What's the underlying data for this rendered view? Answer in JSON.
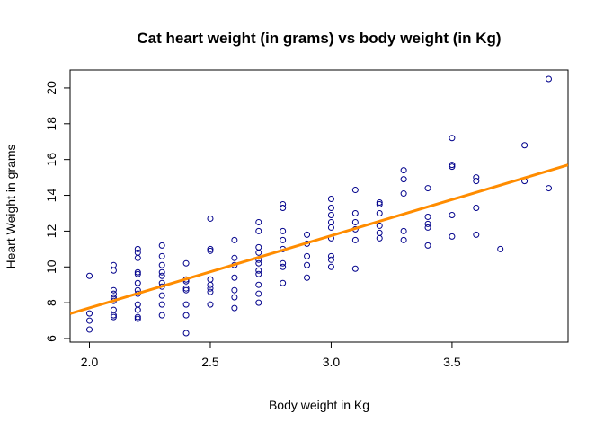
{
  "chart_data": {
    "type": "scatter",
    "title": "Cat heart weight (in grams) vs body weight (in Kg)",
    "xlabel": "Body weight in Kg",
    "ylabel": "Heart Weight in grams",
    "xlim": [
      1.92,
      3.98
    ],
    "ylim": [
      5.8,
      21.0
    ],
    "x_ticks": [
      2.0,
      2.5,
      3.0,
      3.5
    ],
    "x_tick_labels": [
      "2.0",
      "2.5",
      "3.0",
      "3.5"
    ],
    "y_ticks": [
      6,
      8,
      10,
      12,
      14,
      16,
      18,
      20
    ],
    "y_tick_labels": [
      "6",
      "8",
      "10",
      "12",
      "14",
      "16",
      "18",
      "20"
    ],
    "grid": false,
    "marker_color": "#00008b",
    "fit_line_color": "#ff8c00",
    "points": [
      [
        2.0,
        6.5
      ],
      [
        2.0,
        7.0
      ],
      [
        2.0,
        7.4
      ],
      [
        2.0,
        9.5
      ],
      [
        2.1,
        7.2
      ],
      [
        2.1,
        7.3
      ],
      [
        2.1,
        7.6
      ],
      [
        2.1,
        8.1
      ],
      [
        2.1,
        8.2
      ],
      [
        2.1,
        8.3
      ],
      [
        2.1,
        8.5
      ],
      [
        2.1,
        8.7
      ],
      [
        2.1,
        9.8
      ],
      [
        2.1,
        10.1
      ],
      [
        2.2,
        7.1
      ],
      [
        2.2,
        7.2
      ],
      [
        2.2,
        7.6
      ],
      [
        2.2,
        7.9
      ],
      [
        2.2,
        8.5
      ],
      [
        2.2,
        8.7
      ],
      [
        2.2,
        9.1
      ],
      [
        2.2,
        9.6
      ],
      [
        2.2,
        9.7
      ],
      [
        2.2,
        10.5
      ],
      [
        2.2,
        10.8
      ],
      [
        2.2,
        11.0
      ],
      [
        2.3,
        7.3
      ],
      [
        2.3,
        7.9
      ],
      [
        2.3,
        8.4
      ],
      [
        2.3,
        8.9
      ],
      [
        2.3,
        9.1
      ],
      [
        2.3,
        9.5
      ],
      [
        2.3,
        9.7
      ],
      [
        2.3,
        10.1
      ],
      [
        2.3,
        10.6
      ],
      [
        2.3,
        11.2
      ],
      [
        2.4,
        6.3
      ],
      [
        2.4,
        7.3
      ],
      [
        2.4,
        7.9
      ],
      [
        2.4,
        8.7
      ],
      [
        2.4,
        8.8
      ],
      [
        2.4,
        9.2
      ],
      [
        2.4,
        9.3
      ],
      [
        2.4,
        10.2
      ],
      [
        2.5,
        7.9
      ],
      [
        2.5,
        8.6
      ],
      [
        2.5,
        8.8
      ],
      [
        2.5,
        9.0
      ],
      [
        2.5,
        9.3
      ],
      [
        2.5,
        10.9
      ],
      [
        2.5,
        11.0
      ],
      [
        2.5,
        12.7
      ],
      [
        2.6,
        7.7
      ],
      [
        2.6,
        8.3
      ],
      [
        2.6,
        8.7
      ],
      [
        2.6,
        9.4
      ],
      [
        2.6,
        10.1
      ],
      [
        2.6,
        10.5
      ],
      [
        2.6,
        11.5
      ],
      [
        2.7,
        8.0
      ],
      [
        2.7,
        8.5
      ],
      [
        2.7,
        9.0
      ],
      [
        2.7,
        9.6
      ],
      [
        2.7,
        9.8
      ],
      [
        2.7,
        10.2
      ],
      [
        2.7,
        10.4
      ],
      [
        2.7,
        10.8
      ],
      [
        2.7,
        11.1
      ],
      [
        2.7,
        12.0
      ],
      [
        2.7,
        12.5
      ],
      [
        2.8,
        9.1
      ],
      [
        2.8,
        10.0
      ],
      [
        2.8,
        10.2
      ],
      [
        2.8,
        11.0
      ],
      [
        2.8,
        11.5
      ],
      [
        2.8,
        12.0
      ],
      [
        2.8,
        13.3
      ],
      [
        2.8,
        13.5
      ],
      [
        2.9,
        9.4
      ],
      [
        2.9,
        10.1
      ],
      [
        2.9,
        10.6
      ],
      [
        2.9,
        11.3
      ],
      [
        2.9,
        11.8
      ],
      [
        3.0,
        10.0
      ],
      [
        3.0,
        10.4
      ],
      [
        3.0,
        10.6
      ],
      [
        3.0,
        11.6
      ],
      [
        3.0,
        12.2
      ],
      [
        3.0,
        12.5
      ],
      [
        3.0,
        12.9
      ],
      [
        3.0,
        13.3
      ],
      [
        3.0,
        13.8
      ],
      [
        3.1,
        9.9
      ],
      [
        3.1,
        11.5
      ],
      [
        3.1,
        12.1
      ],
      [
        3.1,
        12.5
      ],
      [
        3.1,
        13.0
      ],
      [
        3.1,
        14.3
      ],
      [
        3.2,
        11.6
      ],
      [
        3.2,
        11.9
      ],
      [
        3.2,
        12.3
      ],
      [
        3.2,
        13.0
      ],
      [
        3.2,
        13.5
      ],
      [
        3.2,
        13.6
      ],
      [
        3.3,
        11.5
      ],
      [
        3.3,
        12.0
      ],
      [
        3.3,
        14.1
      ],
      [
        3.3,
        14.9
      ],
      [
        3.3,
        15.4
      ],
      [
        3.4,
        11.2
      ],
      [
        3.4,
        12.2
      ],
      [
        3.4,
        12.4
      ],
      [
        3.4,
        12.8
      ],
      [
        3.4,
        14.4
      ],
      [
        3.5,
        11.7
      ],
      [
        3.5,
        12.9
      ],
      [
        3.5,
        15.6
      ],
      [
        3.5,
        15.7
      ],
      [
        3.5,
        17.2
      ],
      [
        3.6,
        11.8
      ],
      [
        3.6,
        13.3
      ],
      [
        3.6,
        14.8
      ],
      [
        3.6,
        15.0
      ],
      [
        3.7,
        11.0
      ],
      [
        3.8,
        14.8
      ],
      [
        3.8,
        16.8
      ],
      [
        3.9,
        14.4
      ],
      [
        3.9,
        20.5
      ]
    ],
    "fit_line": {
      "intercept": -0.357,
      "slope": 4.034
    }
  }
}
